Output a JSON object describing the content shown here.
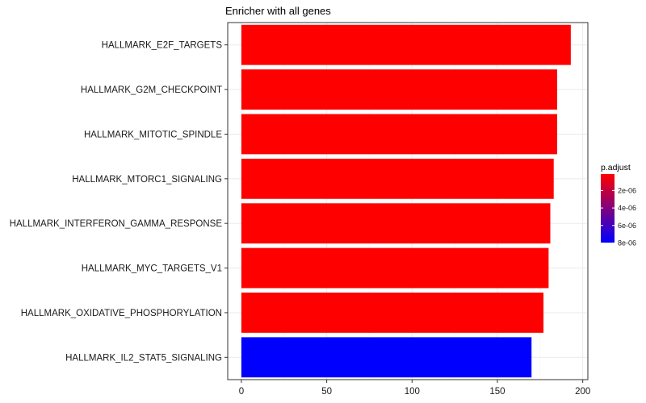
{
  "chart_data": {
    "type": "bar",
    "orientation": "horizontal",
    "title": "Enricher with all genes",
    "xlabel": "",
    "ylabel": "",
    "categories": [
      "HALLMARK_E2F_TARGETS",
      "HALLMARK_G2M_CHECKPOINT",
      "HALLMARK_MITOTIC_SPINDLE",
      "HALLMARK_MTORC1_SIGNALING",
      "HALLMARK_INTERFERON_GAMMA_RESPONSE",
      "HALLMARK_MYC_TARGETS_V1",
      "HALLMARK_OXIDATIVE_PHOSPHORYLATION",
      "HALLMARK_IL2_STAT5_SIGNALING"
    ],
    "values": [
      193,
      185,
      185,
      183,
      181,
      180,
      177,
      170
    ],
    "colors": [
      "#ff0000",
      "#ff0000",
      "#ff0000",
      "#ff0000",
      "#ff0000",
      "#ff0000",
      "#ff0000",
      "#0000ff"
    ],
    "xlim": [
      -8,
      203
    ],
    "xticks": [
      0,
      50,
      100,
      150,
      200
    ],
    "grid": true,
    "legend": {
      "title": "p.adjust",
      "placement": "right",
      "ticks": [
        "2e-06",
        "4e-06",
        "6e-06",
        "8e-06"
      ],
      "gradient": [
        "#ff0000",
        "#0000ff"
      ]
    }
  }
}
